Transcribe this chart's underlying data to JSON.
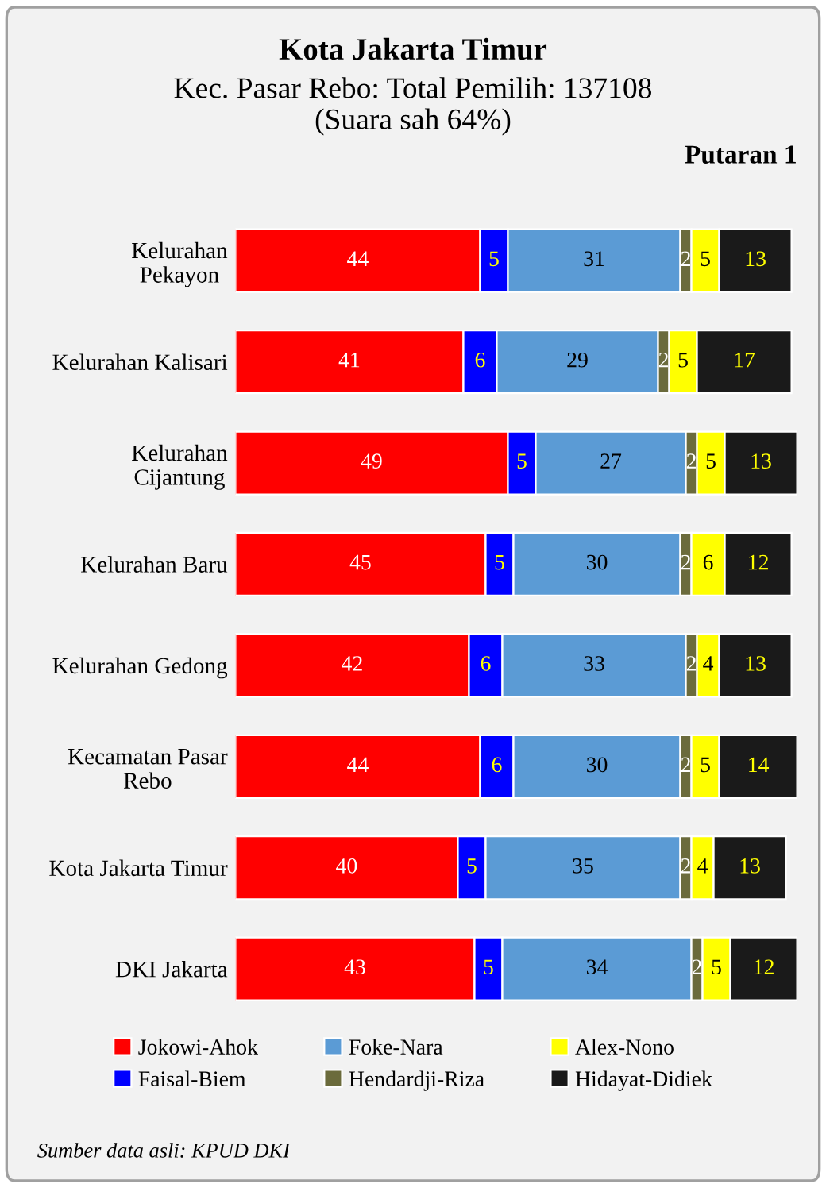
{
  "chart_data": {
    "type": "bar",
    "orientation": "horizontal",
    "stacked": true,
    "data_labels": true,
    "legend": "bottom",
    "grid": false,
    "title": "Kota Jakarta Timur",
    "subtitle": "Kec. Pasar Rebo: Total Pemilih: 137108\n(Suara sah 64%)",
    "annotations": [
      "Putaran 1",
      "Sumber data asli: KPUD DKI"
    ],
    "categories": [
      "Kelurahan\nPekayon",
      "Kelurahan Kalisari",
      "Kelurahan\nCijantung",
      "Kelurahan Baru",
      "Kelurahan Gedong",
      "Kecamatan Pasar\nRebo",
      "Kota Jakarta Timur",
      "DKI Jakarta"
    ],
    "series": [
      {
        "name": "Jokowi-Ahok",
        "color": "#ff0000",
        "values": [
          44,
          41,
          49,
          45,
          42,
          44,
          40,
          43
        ]
      },
      {
        "name": "Faisal-Biem",
        "color": "#0000ff",
        "values": [
          5,
          6,
          5,
          5,
          6,
          6,
          5,
          5
        ]
      },
      {
        "name": "Foke-Nara",
        "color": "#5b9bd5",
        "values": [
          31,
          29,
          27,
          30,
          33,
          30,
          35,
          34
        ]
      },
      {
        "name": "Hendardji-Riza",
        "color": "#6b6b3c",
        "values": [
          2,
          2,
          2,
          2,
          2,
          2,
          2,
          2
        ]
      },
      {
        "name": "Alex-Nono",
        "color": "#ffff00",
        "values": [
          5,
          5,
          5,
          6,
          4,
          5,
          4,
          5
        ]
      },
      {
        "name": "Hidayat-Didiek",
        "color": "#1a1a1a",
        "values": [
          13,
          17,
          13,
          12,
          13,
          14,
          13,
          12
        ]
      }
    ]
  }
}
